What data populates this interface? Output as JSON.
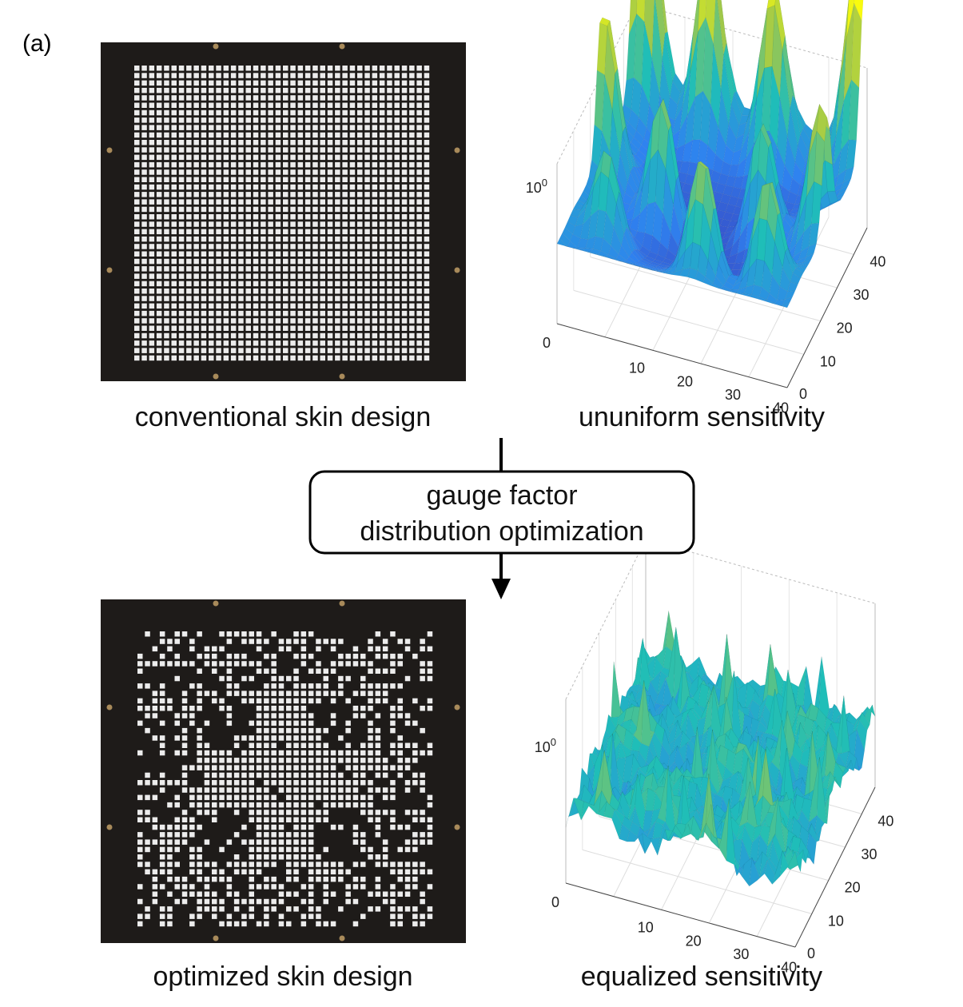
{
  "label": "(a)",
  "top": {
    "photo_caption": "conventional skin design",
    "plot_caption": "ununiform sensitivity",
    "plot": {
      "z_tick": {
        "base": "10",
        "exponent": "0"
      },
      "x_ticks": [
        "0",
        "10",
        "20",
        "30",
        "40"
      ],
      "y_ticks": [
        "0",
        "10",
        "20",
        "30",
        "40"
      ]
    }
  },
  "process_box": {
    "lines": [
      "gauge factor",
      "distribution optimization"
    ]
  },
  "bottom": {
    "photo_caption": "optimized skin design",
    "plot_caption": "equalized sensitivity",
    "plot": {
      "z_tick": {
        "base": "10",
        "exponent": "0"
      },
      "x_ticks": [
        "0",
        "10",
        "20",
        "30",
        "40"
      ],
      "y_ticks": [
        "0",
        "10",
        "20",
        "30",
        "40"
      ]
    }
  }
}
